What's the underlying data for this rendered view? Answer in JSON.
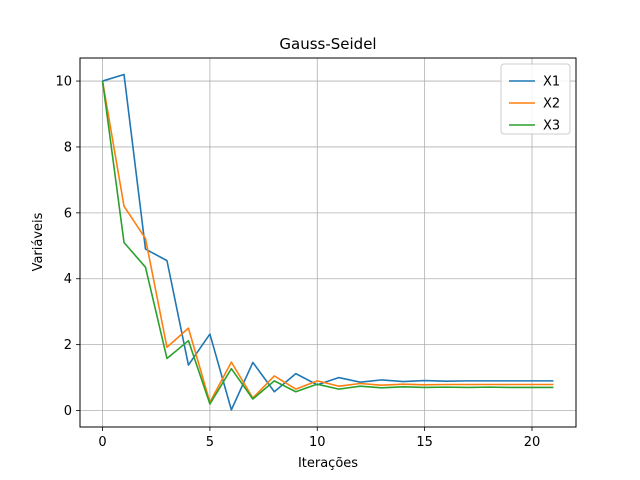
{
  "chart_data": {
    "type": "line",
    "title": "Gauss-Seidel",
    "xlabel": "Iterações",
    "ylabel": "Variáveis",
    "xlim": [
      -1.05,
      22.05
    ],
    "ylim": [
      -0.5,
      10.7
    ],
    "xticks": [
      0,
      5,
      10,
      15,
      20
    ],
    "yticks": [
      0,
      2,
      4,
      6,
      8,
      10
    ],
    "grid": true,
    "legend_position": "top-right",
    "x": [
      0,
      1,
      2,
      3,
      4,
      5,
      6,
      7,
      8,
      9,
      10,
      11,
      12,
      13,
      14,
      15,
      16,
      17,
      18,
      19,
      20,
      21
    ],
    "series": [
      {
        "name": "X1",
        "color": "#1f77b4",
        "values": [
          10,
          10.2,
          4.9,
          4.55,
          1.38,
          2.32,
          0.02,
          1.46,
          0.57,
          1.12,
          0.78,
          1.0,
          0.86,
          0.93,
          0.88,
          0.91,
          0.89,
          0.9,
          0.9,
          0.9,
          0.9,
          0.9
        ]
      },
      {
        "name": "X2",
        "color": "#ff7f0e",
        "values": [
          10,
          6.2,
          5.22,
          1.92,
          2.5,
          0.25,
          1.47,
          0.38,
          1.05,
          0.65,
          0.9,
          0.74,
          0.82,
          0.77,
          0.8,
          0.78,
          0.79,
          0.79,
          0.79,
          0.79,
          0.79,
          0.79
        ]
      },
      {
        "name": "X3",
        "color": "#2ca02c",
        "values": [
          10,
          5.1,
          4.35,
          1.58,
          2.12,
          0.2,
          1.27,
          0.35,
          0.9,
          0.57,
          0.8,
          0.65,
          0.74,
          0.69,
          0.72,
          0.7,
          0.71,
          0.7,
          0.71,
          0.7,
          0.7,
          0.7
        ]
      }
    ]
  }
}
